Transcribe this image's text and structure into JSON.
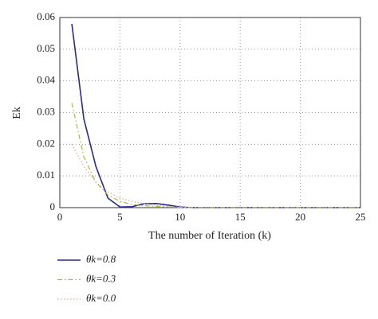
{
  "chart_data": {
    "type": "line",
    "xlabel": "The number of Iteration (k)",
    "ylabel": "Ek",
    "x": [
      1,
      2,
      3,
      4,
      5,
      6,
      7,
      8,
      9,
      10,
      11,
      12,
      13,
      14,
      15,
      16,
      17,
      18,
      19,
      20,
      21,
      22,
      23,
      24,
      25
    ],
    "series": [
      {
        "name": "θk=0.8",
        "color": "#2b2a88",
        "linestyle": "solid",
        "values": [
          0.058,
          0.028,
          0.013,
          0.003,
          0.0002,
          0.0003,
          0.0012,
          0.0013,
          0.0008,
          0.0002,
          0,
          0,
          0,
          0,
          0,
          0,
          0,
          0,
          0,
          0,
          0,
          0,
          0,
          0,
          0
        ]
      },
      {
        "name": "θk=0.3",
        "color": "#9cc43a",
        "linestyle": "dashdot",
        "values": [
          0.033,
          0.016,
          0.008,
          0.004,
          0.002,
          0.001,
          0.0006,
          0.0004,
          0.0002,
          0.0001,
          0,
          0,
          0,
          0,
          0,
          0,
          0,
          0,
          0,
          0,
          0,
          0,
          0,
          0,
          0
        ]
      },
      {
        "name": "θk=0.0",
        "color": "#e6a3a3",
        "linestyle": "dotted",
        "values": [
          0.02,
          0.013,
          0.008,
          0.005,
          0.003,
          0.002,
          0.0012,
          0.0007,
          0.0004,
          0.0002,
          0,
          0,
          0,
          0,
          0,
          0,
          0,
          0,
          0,
          0,
          0,
          0,
          0,
          0,
          0
        ]
      }
    ],
    "xlim": [
      0,
      25
    ],
    "xticks": [
      0,
      5,
      10,
      15,
      20,
      25
    ],
    "ylim": [
      0,
      0.06
    ],
    "yticks": [
      0,
      0.01,
      0.02,
      0.03,
      0.04,
      0.05,
      0.06
    ],
    "grid": true,
    "legend": "below-left"
  }
}
